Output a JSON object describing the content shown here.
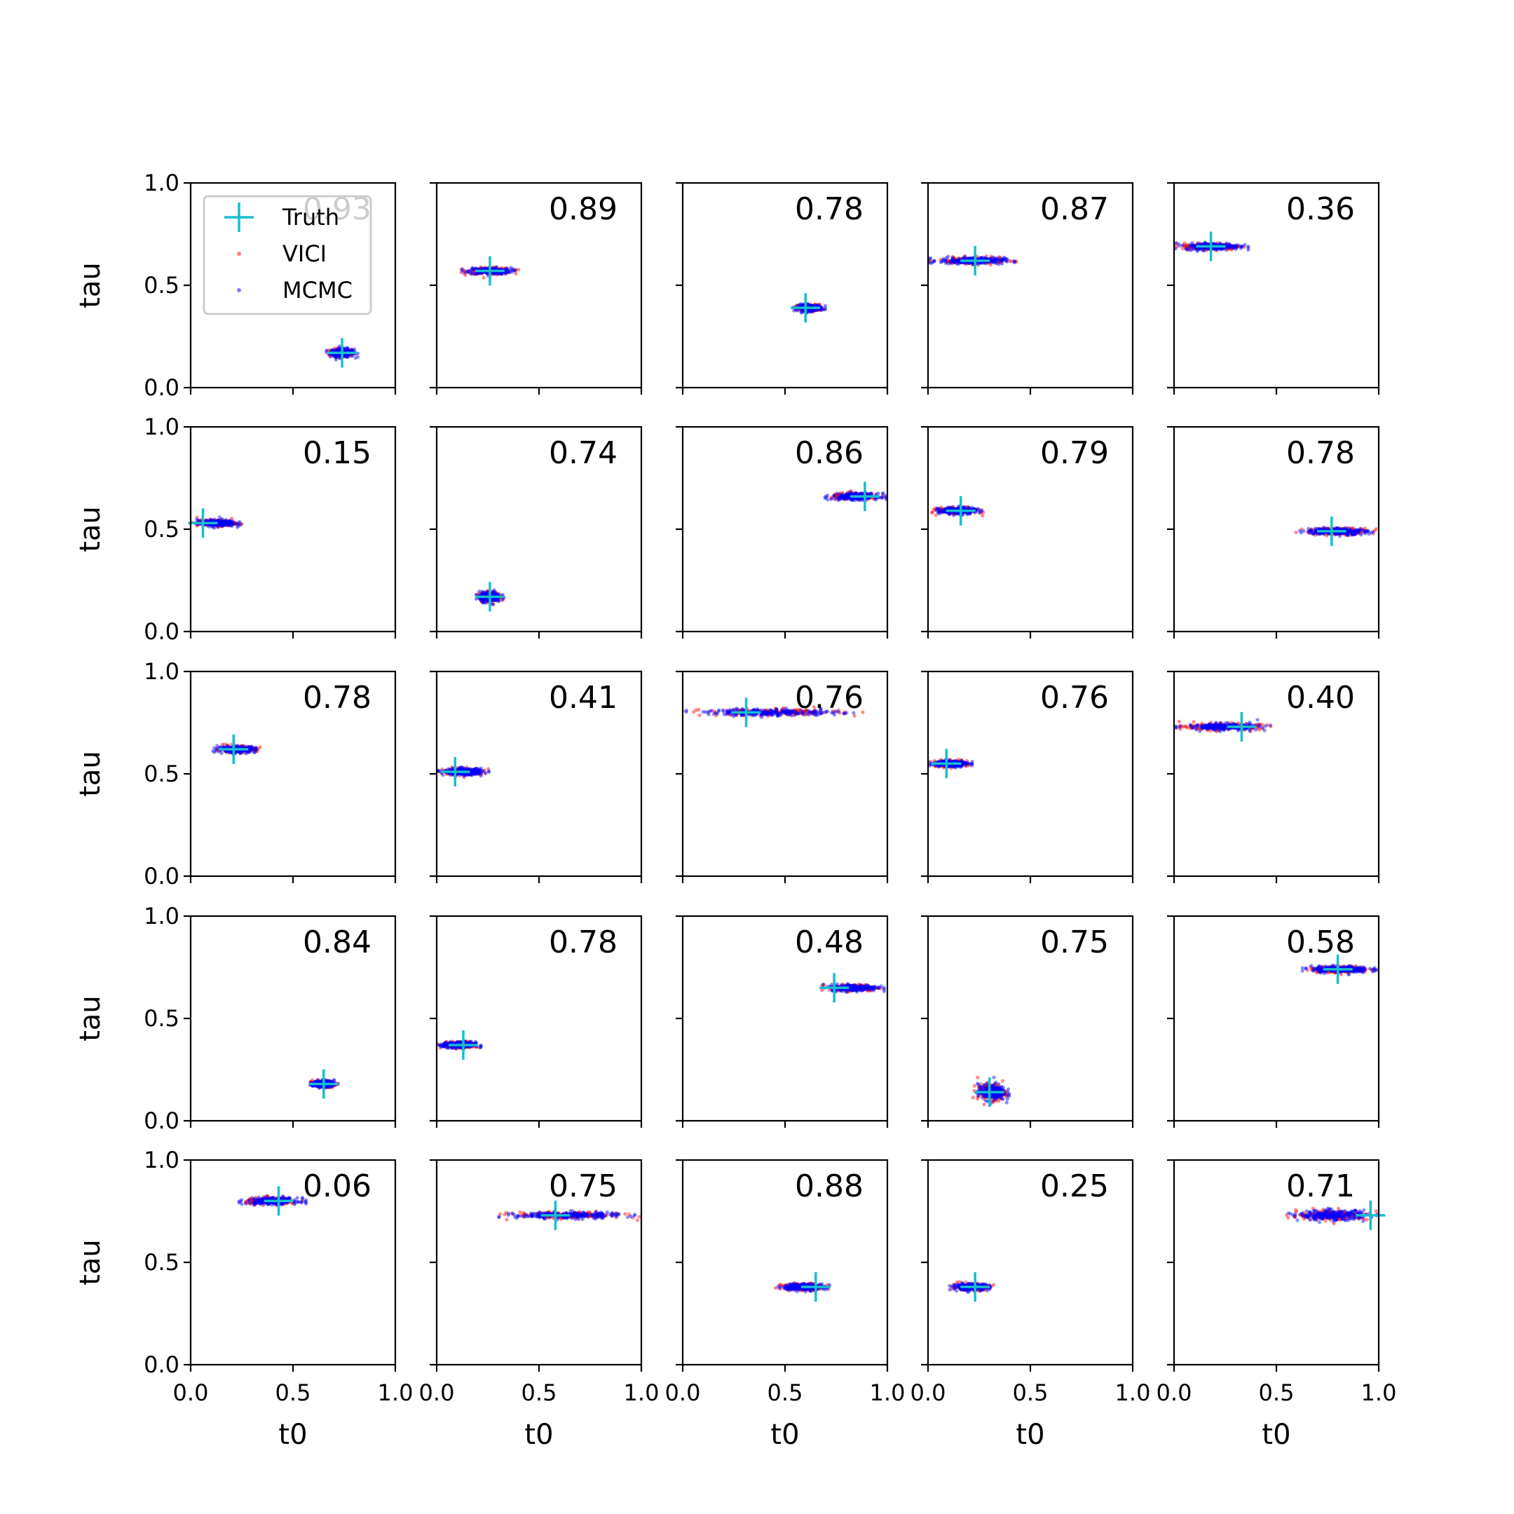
{
  "legend": {
    "entries": [
      {
        "label": "Truth",
        "marker": "plus",
        "color": "#17becf"
      },
      {
        "label": "VICI",
        "marker": "dot",
        "color": "#ff0000"
      },
      {
        "label": "MCMC",
        "marker": "dot",
        "color": "#0000ff"
      }
    ],
    "placement": "upper-left of first panel"
  },
  "colors": {
    "truth": "#17becf",
    "vici": "#ff0000",
    "mcmc": "#0000ff",
    "axes": "#000000"
  },
  "chart_data": {
    "type": "scatter",
    "layout": "5x5 grid of small-multiple panels",
    "xlabel": "t0",
    "ylabel": "tau",
    "xlim": [
      0,
      1
    ],
    "ylim": [
      0,
      1
    ],
    "xticks": [
      "0.0",
      "0.5",
      "1.0"
    ],
    "yticks": [
      "0.0",
      "0.5",
      "1.0"
    ],
    "grid": false,
    "panels": [
      {
        "value": "0.93",
        "truth": [
          0.74,
          0.17
        ],
        "cloud": {
          "x": [
            0.66,
            0.82
          ],
          "y": 0.17,
          "spread": 0.01
        }
      },
      {
        "value": "0.89",
        "truth": [
          0.26,
          0.57
        ],
        "cloud": {
          "x": [
            0.12,
            0.4
          ],
          "y": 0.57,
          "spread": 0.008
        }
      },
      {
        "value": "0.78",
        "truth": [
          0.6,
          0.39
        ],
        "cloud": {
          "x": [
            0.54,
            0.7
          ],
          "y": 0.39,
          "spread": 0.008
        }
      },
      {
        "value": "0.87",
        "truth": [
          0.23,
          0.62
        ],
        "cloud": {
          "x": [
            0.0,
            0.43
          ],
          "y": 0.62,
          "spread": 0.008
        }
      },
      {
        "value": "0.36",
        "truth": [
          0.18,
          0.69
        ],
        "cloud": {
          "x": [
            0.0,
            0.37
          ],
          "y": 0.69,
          "spread": 0.008
        }
      },
      {
        "value": "0.15",
        "truth": [
          0.06,
          0.53
        ],
        "cloud": {
          "x": [
            0.0,
            0.25
          ],
          "y": 0.53,
          "spread": 0.008
        }
      },
      {
        "value": "0.74",
        "truth": [
          0.26,
          0.17
        ],
        "cloud": {
          "x": [
            0.19,
            0.33
          ],
          "y": 0.17,
          "spread": 0.012
        }
      },
      {
        "value": "0.86",
        "truth": [
          0.89,
          0.66
        ],
        "cloud": {
          "x": [
            0.69,
            1.0
          ],
          "y": 0.66,
          "spread": 0.008
        }
      },
      {
        "value": "0.79",
        "truth": [
          0.16,
          0.59
        ],
        "cloud": {
          "x": [
            0.02,
            0.27
          ],
          "y": 0.59,
          "spread": 0.008
        }
      },
      {
        "value": "0.78",
        "truth": [
          0.77,
          0.49
        ],
        "cloud": {
          "x": [
            0.59,
            1.0
          ],
          "y": 0.49,
          "spread": 0.008
        }
      },
      {
        "value": "0.78",
        "truth": [
          0.21,
          0.62
        ],
        "cloud": {
          "x": [
            0.1,
            0.35
          ],
          "y": 0.62,
          "spread": 0.008
        }
      },
      {
        "value": "0.41",
        "truth": [
          0.09,
          0.51
        ],
        "cloud": {
          "x": [
            0.0,
            0.26
          ],
          "y": 0.51,
          "spread": 0.008
        }
      },
      {
        "value": "0.76",
        "truth": [
          0.31,
          0.8
        ],
        "cloud": {
          "x": [
            0.0,
            0.88
          ],
          "y": 0.8,
          "spread": 0.008
        }
      },
      {
        "value": "0.76",
        "truth": [
          0.09,
          0.55
        ],
        "cloud": {
          "x": [
            0.0,
            0.22
          ],
          "y": 0.55,
          "spread": 0.008
        }
      },
      {
        "value": "0.40",
        "truth": [
          0.33,
          0.73
        ],
        "cloud": {
          "x": [
            0.0,
            0.48
          ],
          "y": 0.73,
          "spread": 0.008
        }
      },
      {
        "value": "0.84",
        "truth": [
          0.65,
          0.18
        ],
        "cloud": {
          "x": [
            0.58,
            0.72
          ],
          "y": 0.18,
          "spread": 0.008
        }
      },
      {
        "value": "0.78",
        "truth": [
          0.13,
          0.37
        ],
        "cloud": {
          "x": [
            0.0,
            0.22
          ],
          "y": 0.37,
          "spread": 0.008
        }
      },
      {
        "value": "0.48",
        "truth": [
          0.74,
          0.65
        ],
        "cloud": {
          "x": [
            0.68,
            0.99
          ],
          "y": 0.65,
          "spread": 0.008
        }
      },
      {
        "value": "0.75",
        "truth": [
          0.3,
          0.14
        ],
        "cloud": {
          "x": [
            0.22,
            0.4
          ],
          "y": 0.14,
          "spread": 0.02
        }
      },
      {
        "value": "0.58",
        "truth": [
          0.8,
          0.74
        ],
        "cloud": {
          "x": [
            0.62,
            1.0
          ],
          "y": 0.74,
          "spread": 0.008
        }
      },
      {
        "value": "0.06",
        "truth": [
          0.43,
          0.8
        ],
        "cloud": {
          "x": [
            0.23,
            0.57
          ],
          "y": 0.8,
          "spread": 0.008
        }
      },
      {
        "value": "0.75",
        "truth": [
          0.58,
          0.73
        ],
        "cloud": {
          "x": [
            0.29,
            0.99
          ],
          "y": 0.73,
          "spread": 0.008
        }
      },
      {
        "value": "0.88",
        "truth": [
          0.65,
          0.38
        ],
        "cloud": {
          "x": [
            0.45,
            0.73
          ],
          "y": 0.38,
          "spread": 0.008
        }
      },
      {
        "value": "0.25",
        "truth": [
          0.23,
          0.38
        ],
        "cloud": {
          "x": [
            0.09,
            0.33
          ],
          "y": 0.38,
          "spread": 0.008
        }
      },
      {
        "value": "0.71",
        "truth": [
          0.96,
          0.73
        ],
        "cloud": {
          "x": [
            0.55,
            1.0
          ],
          "y": 0.73,
          "spread": 0.012
        }
      }
    ]
  }
}
